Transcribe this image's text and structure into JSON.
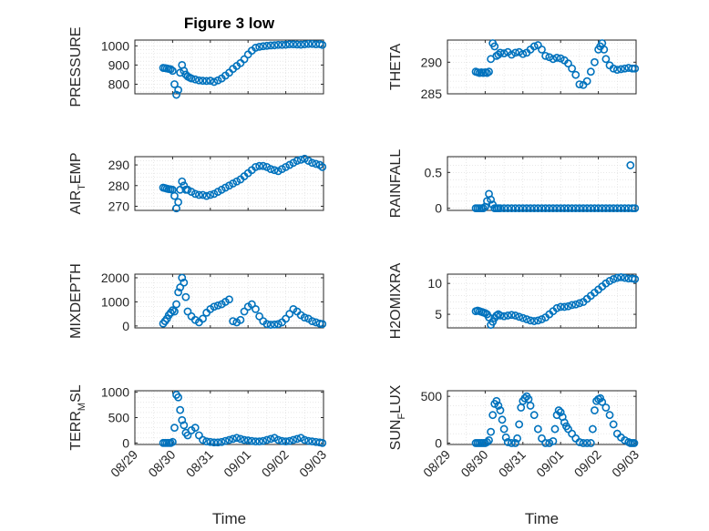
{
  "figure": {
    "title": "Figure 3 low"
  },
  "colors": {
    "marker": "#0072BD"
  },
  "chart_data": [
    {
      "type": "scatter",
      "id": "pressure",
      "ylabel": "PRESSURE",
      "ylim": [
        750,
        1030
      ],
      "yticks": [
        800,
        900,
        1000
      ],
      "xlim": [
        0,
        5
      ],
      "xticks": [
        0,
        1,
        2,
        3,
        4,
        5
      ],
      "xticklabels": [],
      "xlabel": "",
      "x": [
        0.75,
        0.8,
        0.85,
        0.9,
        0.95,
        1.0,
        1.05,
        1.1,
        1.15,
        1.2,
        1.25,
        1.3,
        1.35,
        1.4,
        1.45,
        1.5,
        1.6,
        1.7,
        1.8,
        1.9,
        2.0,
        2.1,
        2.2,
        2.3,
        2.4,
        2.5,
        2.6,
        2.7,
        2.8,
        2.9,
        3.0,
        3.1,
        3.2,
        3.3,
        3.4,
        3.5,
        3.6,
        3.7,
        3.8,
        3.9,
        4.0,
        4.1,
        4.2,
        4.3,
        4.4,
        4.5,
        4.6,
        4.7,
        4.8,
        4.9,
        4.97
      ],
      "y": [
        885,
        884,
        882,
        880,
        878,
        870,
        800,
        745,
        770,
        860,
        900,
        870,
        850,
        840,
        835,
        830,
        825,
        820,
        818,
        817,
        818,
        812,
        820,
        830,
        845,
        860,
        880,
        895,
        910,
        930,
        955,
        975,
        990,
        995,
        998,
        1000,
        1002,
        1003,
        1005,
        1005,
        1006,
        1008,
        1008,
        1007,
        1006,
        1008,
        1010,
        1010,
        1008,
        1009,
        1005
      ]
    },
    {
      "type": "scatter",
      "id": "theta",
      "ylabel": "THETA",
      "ylim": [
        285,
        293.5
      ],
      "yticks": [
        285,
        290
      ],
      "xlim": [
        0,
        5
      ],
      "xticks": [
        0,
        1,
        2,
        3,
        4,
        5
      ],
      "xticklabels": [],
      "xlabel": "",
      "x": [
        0.75,
        0.8,
        0.85,
        0.9,
        0.95,
        1.0,
        1.05,
        1.1,
        1.15,
        1.2,
        1.25,
        1.3,
        1.35,
        1.4,
        1.5,
        1.6,
        1.7,
        1.8,
        1.9,
        2.0,
        2.1,
        2.2,
        2.3,
        2.4,
        2.5,
        2.6,
        2.7,
        2.8,
        2.9,
        3.0,
        3.1,
        3.2,
        3.3,
        3.4,
        3.5,
        3.6,
        3.7,
        3.8,
        3.9,
        4.0,
        4.05,
        4.1,
        4.15,
        4.2,
        4.3,
        4.4,
        4.5,
        4.6,
        4.7,
        4.8,
        4.9,
        4.97
      ],
      "y": [
        288.5,
        288.4,
        288.3,
        288.4,
        288.3,
        288.4,
        288.3,
        288.5,
        290.5,
        293.0,
        292.5,
        291.0,
        291.2,
        291.5,
        291.4,
        291.6,
        291.2,
        291.5,
        291.6,
        291.3,
        291.5,
        292.0,
        292.5,
        292.7,
        292.0,
        291.0,
        290.8,
        290.5,
        290.7,
        290.6,
        290.3,
        289.8,
        289.0,
        288.0,
        286.5,
        286.4,
        287.0,
        288.5,
        290.0,
        292.0,
        292.5,
        293.0,
        292.0,
        290.5,
        289.5,
        289.0,
        288.8,
        288.9,
        289.0,
        289.1,
        289.0,
        289.0
      ]
    },
    {
      "type": "scatter",
      "id": "air-temp",
      "ylabel": "AIR",
      "ylabel_sub": "T",
      "ylabel_rest": "EMP",
      "ylim": [
        268,
        294
      ],
      "yticks": [
        270,
        280,
        290
      ],
      "xlim": [
        0,
        5
      ],
      "xticks": [
        0,
        1,
        2,
        3,
        4,
        5
      ],
      "xticklabels": [],
      "xlabel": "",
      "x": [
        0.75,
        0.8,
        0.85,
        0.9,
        0.95,
        1.0,
        1.05,
        1.1,
        1.15,
        1.2,
        1.25,
        1.3,
        1.35,
        1.4,
        1.5,
        1.6,
        1.7,
        1.8,
        1.9,
        2.0,
        2.1,
        2.2,
        2.3,
        2.4,
        2.5,
        2.6,
        2.7,
        2.8,
        2.9,
        3.0,
        3.1,
        3.2,
        3.3,
        3.4,
        3.5,
        3.6,
        3.7,
        3.8,
        3.9,
        4.0,
        4.1,
        4.2,
        4.3,
        4.4,
        4.5,
        4.6,
        4.7,
        4.8,
        4.9,
        4.97
      ],
      "y": [
        279,
        278.8,
        278.5,
        278.3,
        278.2,
        278,
        275,
        269,
        272,
        278,
        282,
        280,
        278,
        278,
        277,
        276,
        275.5,
        275.5,
        275,
        275.5,
        276,
        277,
        278,
        279,
        280,
        281,
        282,
        283,
        284.5,
        286,
        287.5,
        289,
        289.5,
        289.5,
        289,
        288,
        287.5,
        287,
        288,
        289,
        290,
        291,
        292,
        292.5,
        293,
        292,
        291,
        290.5,
        290,
        289
      ]
    },
    {
      "type": "scatter",
      "id": "rainfall",
      "ylabel": "RAINFALL",
      "ylim": [
        -0.03,
        0.72
      ],
      "yticks": [
        0,
        0.5
      ],
      "xlim": [
        0,
        5
      ],
      "xticks": [
        0,
        1,
        2,
        3,
        4,
        5
      ],
      "xticklabels": [],
      "xlabel": "",
      "x": [
        0.75,
        0.8,
        0.85,
        0.9,
        0.95,
        1.0,
        1.05,
        1.1,
        1.15,
        1.2,
        1.25,
        1.3,
        1.35,
        1.4,
        1.5,
        1.6,
        1.7,
        1.8,
        1.9,
        2.0,
        2.1,
        2.2,
        2.3,
        2.4,
        2.5,
        2.6,
        2.7,
        2.8,
        2.9,
        3.0,
        3.1,
        3.2,
        3.3,
        3.4,
        3.5,
        3.6,
        3.7,
        3.8,
        3.9,
        4.0,
        4.1,
        4.2,
        4.3,
        4.4,
        4.5,
        4.6,
        4.7,
        4.8,
        4.85,
        4.9,
        4.97
      ],
      "y": [
        0,
        0,
        0,
        0,
        0,
        0.02,
        0.1,
        0.2,
        0.12,
        0.05,
        0,
        0,
        0,
        0,
        0,
        0,
        0,
        0,
        0,
        0,
        0,
        0,
        0,
        0,
        0,
        0,
        0,
        0,
        0,
        0,
        0,
        0,
        0,
        0,
        0,
        0,
        0,
        0,
        0,
        0,
        0,
        0,
        0,
        0,
        0,
        0,
        0,
        0,
        0.6,
        0,
        0
      ]
    },
    {
      "type": "scatter",
      "id": "mixdepth",
      "ylabel": "MIXDEPTH",
      "ylim": [
        -80,
        2150
      ],
      "yticks": [
        0,
        1000,
        2000
      ],
      "xlim": [
        0,
        5
      ],
      "xticks": [
        0,
        1,
        2,
        3,
        4,
        5
      ],
      "xticklabels": [],
      "xlabel": "",
      "x": [
        0.75,
        0.8,
        0.85,
        0.9,
        0.95,
        1.0,
        1.05,
        1.1,
        1.15,
        1.2,
        1.25,
        1.3,
        1.35,
        1.4,
        1.5,
        1.6,
        1.7,
        1.8,
        1.9,
        2.0,
        2.1,
        2.2,
        2.3,
        2.4,
        2.5,
        2.6,
        2.7,
        2.8,
        2.9,
        3.0,
        3.1,
        3.2,
        3.3,
        3.4,
        3.5,
        3.6,
        3.7,
        3.8,
        3.9,
        4.0,
        4.1,
        4.2,
        4.3,
        4.4,
        4.5,
        4.6,
        4.7,
        4.8,
        4.9,
        4.97
      ],
      "y": [
        100,
        200,
        300,
        450,
        550,
        650,
        600,
        900,
        1400,
        1600,
        2000,
        1800,
        1200,
        600,
        400,
        250,
        150,
        300,
        550,
        700,
        800,
        850,
        900,
        1000,
        1100,
        200,
        150,
        250,
        600,
        800,
        900,
        700,
        400,
        200,
        80,
        50,
        60,
        80,
        150,
        300,
        500,
        700,
        600,
        450,
        350,
        300,
        200,
        150,
        100,
        80
      ]
    },
    {
      "type": "scatter",
      "id": "h2omixra",
      "ylabel": "H2OMIXRA",
      "ylim": [
        2.8,
        11.5
      ],
      "yticks": [
        5,
        10
      ],
      "xlim": [
        0,
        5
      ],
      "xticks": [
        0,
        1,
        2,
        3,
        4,
        5
      ],
      "xticklabels": [],
      "xlabel": "",
      "x": [
        0.75,
        0.8,
        0.85,
        0.9,
        0.95,
        1.0,
        1.05,
        1.1,
        1.15,
        1.2,
        1.25,
        1.3,
        1.35,
        1.4,
        1.5,
        1.6,
        1.7,
        1.8,
        1.9,
        2.0,
        2.1,
        2.2,
        2.3,
        2.4,
        2.5,
        2.6,
        2.7,
        2.8,
        2.9,
        3.0,
        3.1,
        3.2,
        3.3,
        3.4,
        3.5,
        3.6,
        3.7,
        3.8,
        3.9,
        4.0,
        4.1,
        4.2,
        4.3,
        4.4,
        4.5,
        4.6,
        4.7,
        4.8,
        4.9,
        4.97
      ],
      "y": [
        5.5,
        5.6,
        5.5,
        5.4,
        5.3,
        5.2,
        5.0,
        4.5,
        3.3,
        3.8,
        4.4,
        4.8,
        5.0,
        4.8,
        4.7,
        4.8,
        4.9,
        4.8,
        4.6,
        4.4,
        4.2,
        4.0,
        3.9,
        4.0,
        4.2,
        4.5,
        5.0,
        5.5,
        6.0,
        6.2,
        6.2,
        6.3,
        6.5,
        6.6,
        6.8,
        7.0,
        7.5,
        8.0,
        8.5,
        9.0,
        9.5,
        10.0,
        10.4,
        10.7,
        10.9,
        11.0,
        10.9,
        10.8,
        10.8,
        10.7
      ]
    },
    {
      "type": "scatter",
      "id": "terr-msl",
      "ylabel": "TERR",
      "ylabel_sub": "M",
      "ylabel_rest": "SL",
      "ylim": [
        -30,
        1030
      ],
      "yticks": [
        0,
        500,
        1000
      ],
      "xlim": [
        0,
        5
      ],
      "xticks": [
        0,
        1,
        2,
        3,
        4,
        5
      ],
      "xticklabels": [
        "08/29",
        "08/30",
        "08/31",
        "09/01",
        "09/02",
        "09/03"
      ],
      "xlabel": "Time",
      "x": [
        0.75,
        0.8,
        0.85,
        0.9,
        0.95,
        1.0,
        1.05,
        1.1,
        1.15,
        1.2,
        1.25,
        1.3,
        1.35,
        1.4,
        1.5,
        1.6,
        1.7,
        1.8,
        1.9,
        2.0,
        2.1,
        2.2,
        2.3,
        2.4,
        2.5,
        2.6,
        2.7,
        2.8,
        2.9,
        3.0,
        3.1,
        3.2,
        3.3,
        3.4,
        3.5,
        3.6,
        3.7,
        3.8,
        3.9,
        4.0,
        4.1,
        4.2,
        4.3,
        4.4,
        4.5,
        4.6,
        4.7,
        4.8,
        4.9,
        4.97
      ],
      "y": [
        0,
        0,
        0,
        0,
        0,
        20,
        300,
        950,
        900,
        650,
        450,
        350,
        200,
        150,
        250,
        300,
        150,
        60,
        30,
        20,
        10,
        10,
        20,
        40,
        60,
        80,
        100,
        80,
        60,
        50,
        40,
        30,
        30,
        40,
        60,
        80,
        100,
        60,
        40,
        30,
        40,
        60,
        80,
        100,
        60,
        40,
        30,
        20,
        10,
        0
      ]
    },
    {
      "type": "scatter",
      "id": "sun-flux",
      "ylabel": "SUN",
      "ylabel_sub": "F",
      "ylabel_rest": "LUX",
      "ylim": [
        -15,
        560
      ],
      "yticks": [
        0,
        500
      ],
      "xlim": [
        0,
        5
      ],
      "xticks": [
        0,
        1,
        2,
        3,
        4,
        5
      ],
      "xticklabels": [
        "08/29",
        "08/30",
        "08/31",
        "09/01",
        "09/02",
        "09/03"
      ],
      "xlabel": "Time",
      "x": [
        0.75,
        0.8,
        0.85,
        0.9,
        0.95,
        1.0,
        1.05,
        1.1,
        1.15,
        1.2,
        1.25,
        1.3,
        1.35,
        1.4,
        1.45,
        1.5,
        1.55,
        1.6,
        1.7,
        1.8,
        1.85,
        1.9,
        1.95,
        2.0,
        2.05,
        2.1,
        2.15,
        2.2,
        2.3,
        2.4,
        2.5,
        2.6,
        2.7,
        2.8,
        2.85,
        2.9,
        2.95,
        3.0,
        3.05,
        3.1,
        3.15,
        3.2,
        3.3,
        3.4,
        3.5,
        3.6,
        3.7,
        3.8,
        3.85,
        3.9,
        3.95,
        4.0,
        4.05,
        4.1,
        4.2,
        4.3,
        4.4,
        4.5,
        4.6,
        4.7,
        4.8,
        4.85,
        4.9,
        4.95
      ],
      "y": [
        0,
        0,
        0,
        0,
        0,
        0,
        10,
        30,
        120,
        300,
        420,
        450,
        400,
        350,
        250,
        150,
        60,
        10,
        0,
        0,
        50,
        200,
        380,
        450,
        480,
        500,
        470,
        400,
        300,
        150,
        50,
        0,
        0,
        20,
        150,
        300,
        350,
        330,
        280,
        220,
        180,
        150,
        100,
        50,
        10,
        0,
        0,
        0,
        150,
        350,
        450,
        470,
        480,
        440,
        380,
        300,
        200,
        100,
        60,
        30,
        10,
        0,
        0,
        0
      ]
    }
  ]
}
